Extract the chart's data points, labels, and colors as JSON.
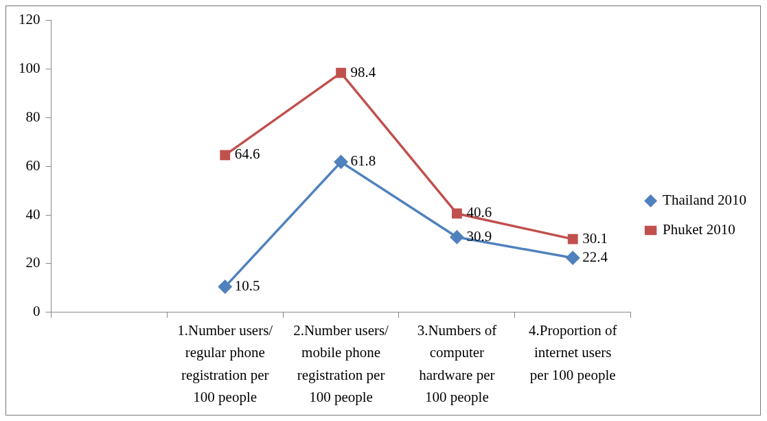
{
  "chart_data": {
    "type": "line",
    "categories": [
      null,
      "1.Number users/ regular phone registration per 100 people",
      "2.Number users/ mobile phone registration per 100 people",
      "3.Numbers of computer hardware per 100 people",
      "4.Proportion of internet users per 100 people"
    ],
    "series": [
      {
        "name": "Thailand 2010",
        "color": "#4f81bd",
        "marker": "diamond",
        "values": [
          null,
          10.5,
          61.8,
          30.9,
          22.4
        ]
      },
      {
        "name": "Phuket 2010",
        "color": "#c0504d",
        "marker": "square",
        "values": [
          null,
          64.6,
          98.4,
          40.6,
          30.1
        ]
      }
    ],
    "ylim": [
      0,
      120
    ],
    "yticks": [
      0,
      20,
      40,
      60,
      80,
      100,
      120
    ],
    "grid": false,
    "legend": "right",
    "data_labels": true,
    "line_style": "solid"
  }
}
